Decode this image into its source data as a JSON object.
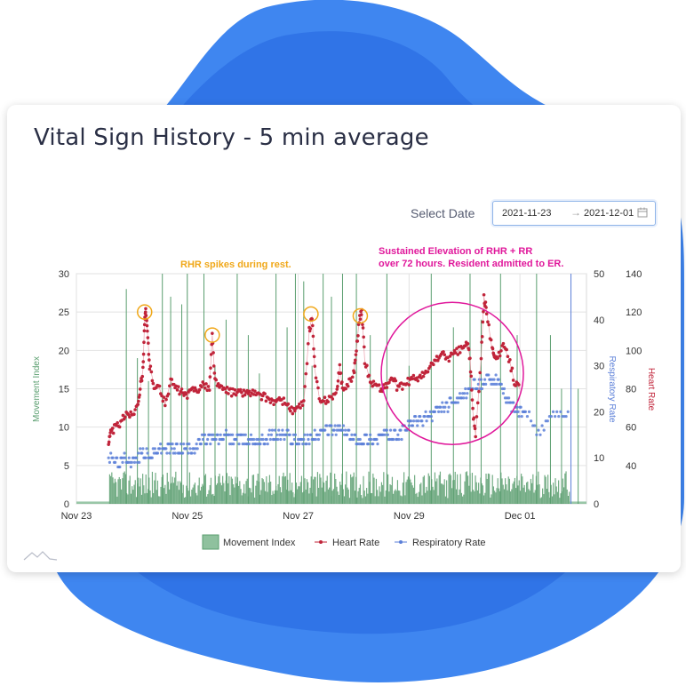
{
  "card": {
    "title": "Vital Sign History - 5 min average",
    "date_picker": {
      "label": "Select Date",
      "start": "2021-11-23",
      "end": "2021-12-01",
      "separator": "→",
      "icon": "calendar-icon"
    }
  },
  "colors": {
    "movement": "#5a9e6f",
    "heart_rate": "#c0243a",
    "respiratory": "#5b7fd8",
    "annotation_orange": "#f0a81a",
    "annotation_magenta": "#e0189b",
    "blob_outer": "#3f86f0",
    "blob_inner": "#1f62df"
  },
  "chart_data": {
    "type": "line",
    "x_ticks": [
      "Nov 23",
      "Nov 25",
      "Nov 27",
      "Nov 29",
      "Dec 01"
    ],
    "x_tick_positions_days": [
      0,
      2,
      4,
      6,
      8
    ],
    "x_range_days": [
      0,
      9.2
    ],
    "y_left": {
      "label": "Movement Index",
      "range": [
        0,
        30
      ],
      "ticks": [
        0,
        5,
        10,
        15,
        20,
        25,
        30
      ]
    },
    "y_right1": {
      "label": "Respiratory Rate",
      "range": [
        0,
        50
      ],
      "ticks": [
        0,
        10,
        20,
        30,
        40,
        50
      ]
    },
    "y_right2": {
      "label": "Heart Rate",
      "range": [
        20,
        140
      ],
      "ticks": [
        40,
        60,
        80,
        100,
        120,
        140
      ]
    },
    "legend_position": "bottom",
    "grid": true,
    "series": [
      {
        "name": "Movement Index",
        "axis": "left",
        "kind": "area",
        "baseline": 0.3,
        "bursts": [
          [
            0.6,
            8.9
          ]
        ],
        "activity_level": 2.5,
        "spikes": [
          [
            0.9,
            28
          ],
          [
            1.1,
            19
          ],
          [
            1.3,
            16
          ],
          [
            1.55,
            30
          ],
          [
            1.7,
            27
          ],
          [
            1.9,
            26
          ],
          [
            2.0,
            30
          ],
          [
            2.3,
            30
          ],
          [
            2.5,
            18
          ],
          [
            2.7,
            24
          ],
          [
            2.9,
            30
          ],
          [
            3.1,
            22
          ],
          [
            3.3,
            17
          ],
          [
            3.6,
            30
          ],
          [
            3.8,
            23
          ],
          [
            3.95,
            30
          ],
          [
            4.1,
            29
          ],
          [
            4.25,
            18
          ],
          [
            4.45,
            30
          ],
          [
            4.6,
            27
          ],
          [
            4.8,
            30
          ],
          [
            5.05,
            30
          ],
          [
            5.3,
            22
          ],
          [
            5.6,
            30
          ],
          [
            6.0,
            18
          ],
          [
            6.4,
            30
          ],
          [
            6.8,
            23
          ],
          [
            7.1,
            30
          ],
          [
            7.3,
            24
          ],
          [
            7.65,
            30
          ],
          [
            7.95,
            22
          ],
          [
            8.3,
            30
          ],
          [
            8.55,
            22
          ],
          [
            8.75,
            15
          ],
          [
            9.05,
            15
          ]
        ]
      },
      {
        "name": "Heart Rate",
        "axis": "right2",
        "kind": "dots",
        "points": [
          [
            0.58,
            52
          ],
          [
            0.62,
            57
          ],
          [
            0.7,
            60
          ],
          [
            0.8,
            62
          ],
          [
            0.9,
            68
          ],
          [
            1.0,
            66
          ],
          [
            1.1,
            72
          ],
          [
            1.15,
            80
          ],
          [
            1.2,
            90
          ],
          [
            1.23,
            115
          ],
          [
            1.25,
            120
          ],
          [
            1.28,
            110
          ],
          [
            1.32,
            92
          ],
          [
            1.4,
            82
          ],
          [
            1.5,
            80
          ],
          [
            1.6,
            72
          ],
          [
            1.7,
            84
          ],
          [
            1.8,
            80
          ],
          [
            1.9,
            78
          ],
          [
            2.0,
            76
          ],
          [
            2.1,
            80
          ],
          [
            2.2,
            80
          ],
          [
            2.3,
            82
          ],
          [
            2.4,
            80
          ],
          [
            2.45,
            108
          ],
          [
            2.5,
            84
          ],
          [
            2.6,
            80
          ],
          [
            2.7,
            80
          ],
          [
            2.8,
            78
          ],
          [
            2.9,
            78
          ],
          [
            3.0,
            78
          ],
          [
            3.1,
            78
          ],
          [
            3.2,
            78
          ],
          [
            3.3,
            76
          ],
          [
            3.4,
            76
          ],
          [
            3.5,
            74
          ],
          [
            3.6,
            73
          ],
          [
            3.7,
            74
          ],
          [
            3.8,
            72
          ],
          [
            3.9,
            68
          ],
          [
            4.0,
            70
          ],
          [
            4.1,
            72
          ],
          [
            4.2,
            110
          ],
          [
            4.25,
            118
          ],
          [
            4.3,
            90
          ],
          [
            4.4,
            72
          ],
          [
            4.5,
            74
          ],
          [
            4.6,
            76
          ],
          [
            4.7,
            78
          ],
          [
            4.75,
            92
          ],
          [
            4.8,
            80
          ],
          [
            4.9,
            82
          ],
          [
            5.0,
            88
          ],
          [
            5.05,
            100
          ],
          [
            5.1,
            116
          ],
          [
            5.15,
            120
          ],
          [
            5.2,
            95
          ],
          [
            5.3,
            84
          ],
          [
            5.4,
            82
          ],
          [
            5.5,
            80
          ],
          [
            5.6,
            82
          ],
          [
            5.7,
            86
          ],
          [
            5.8,
            80
          ],
          [
            5.9,
            82
          ],
          [
            6.0,
            84
          ],
          [
            6.1,
            86
          ],
          [
            6.2,
            86
          ],
          [
            6.3,
            88
          ],
          [
            6.4,
            92
          ],
          [
            6.5,
            96
          ],
          [
            6.6,
            98
          ],
          [
            6.7,
            96
          ],
          [
            6.8,
            98
          ],
          [
            6.9,
            100
          ],
          [
            7.0,
            102
          ],
          [
            7.05,
            104
          ],
          [
            7.1,
            96
          ],
          [
            7.15,
            68
          ],
          [
            7.2,
            56
          ],
          [
            7.3,
            96
          ],
          [
            7.35,
            128
          ],
          [
            7.4,
            120
          ],
          [
            7.5,
            100
          ],
          [
            7.55,
            98
          ],
          [
            7.6,
            96
          ],
          [
            7.7,
            102
          ],
          [
            7.8,
            96
          ],
          [
            7.9,
            84
          ],
          [
            8.0,
            80
          ]
        ]
      },
      {
        "name": "Respiratory Rate",
        "axis": "right1",
        "kind": "dots",
        "points": [
          [
            0.58,
            10
          ],
          [
            0.7,
            9
          ],
          [
            0.8,
            9
          ],
          [
            0.9,
            10
          ],
          [
            1.0,
            9
          ],
          [
            1.1,
            10
          ],
          [
            1.2,
            11
          ],
          [
            1.3,
            10
          ],
          [
            1.4,
            11
          ],
          [
            1.5,
            12
          ],
          [
            1.6,
            12
          ],
          [
            1.7,
            12
          ],
          [
            1.8,
            12
          ],
          [
            1.9,
            12
          ],
          [
            2.0,
            12
          ],
          [
            2.1,
            12
          ],
          [
            2.2,
            13
          ],
          [
            2.3,
            14
          ],
          [
            2.4,
            14
          ],
          [
            2.5,
            14
          ],
          [
            2.6,
            14
          ],
          [
            2.7,
            15
          ],
          [
            2.8,
            14
          ],
          [
            2.9,
            14
          ],
          [
            3.0,
            14
          ],
          [
            3.1,
            14
          ],
          [
            3.2,
            14
          ],
          [
            3.3,
            14
          ],
          [
            3.4,
            14
          ],
          [
            3.5,
            15
          ],
          [
            3.6,
            15
          ],
          [
            3.7,
            15
          ],
          [
            3.8,
            15
          ],
          [
            3.9,
            14
          ],
          [
            4.0,
            14
          ],
          [
            4.1,
            14
          ],
          [
            4.2,
            14
          ],
          [
            4.3,
            15
          ],
          [
            4.4,
            15
          ],
          [
            4.5,
            16
          ],
          [
            4.6,
            16
          ],
          [
            4.7,
            16
          ],
          [
            4.8,
            16
          ],
          [
            4.9,
            15
          ],
          [
            5.0,
            14
          ],
          [
            5.1,
            14
          ],
          [
            5.2,
            14
          ],
          [
            5.3,
            14
          ],
          [
            5.4,
            14
          ],
          [
            5.5,
            15
          ],
          [
            5.6,
            15
          ],
          [
            5.7,
            15
          ],
          [
            5.8,
            15
          ],
          [
            5.9,
            16
          ],
          [
            6.0,
            17
          ],
          [
            6.1,
            18
          ],
          [
            6.2,
            18
          ],
          [
            6.3,
            19
          ],
          [
            6.4,
            19
          ],
          [
            6.5,
            20
          ],
          [
            6.6,
            21
          ],
          [
            6.7,
            21
          ],
          [
            6.8,
            22
          ],
          [
            6.9,
            22
          ],
          [
            7.0,
            24
          ],
          [
            7.1,
            25
          ],
          [
            7.2,
            26
          ],
          [
            7.3,
            26
          ],
          [
            7.4,
            27
          ],
          [
            7.5,
            26
          ],
          [
            7.6,
            28
          ],
          [
            7.7,
            24
          ],
          [
            7.8,
            22
          ],
          [
            7.9,
            21
          ],
          [
            8.0,
            20
          ],
          [
            8.1,
            20
          ],
          [
            8.3,
            16
          ],
          [
            8.5,
            18
          ],
          [
            8.7,
            20
          ],
          [
            8.9,
            20
          ]
        ]
      }
    ],
    "annotations": [
      {
        "text": "RHR spikes during rest.",
        "color": "orange",
        "lines": [
          "RHR spikes during rest."
        ]
      },
      {
        "text": "Sustained Elevation of RHR + RR over 72 hours. Resident admitted to ER.",
        "color": "magenta",
        "lines": [
          "Sustained Elevation of RHR + RR",
          "over 72 hours. Resident admitted to ER."
        ]
      }
    ],
    "highlight_circles": [
      {
        "kind": "orange",
        "x": 1.23,
        "y_hr": 120
      },
      {
        "kind": "orange",
        "x": 2.45,
        "y_hr": 108
      },
      {
        "kind": "orange",
        "x": 4.23,
        "y_hr": 119
      },
      {
        "kind": "orange",
        "x": 5.12,
        "y_hr": 118
      },
      {
        "kind": "magenta",
        "x": 6.78,
        "y_hr": 88
      }
    ],
    "legend": [
      "Movement Index",
      "Heart Rate",
      "Respiratory Rate"
    ]
  }
}
